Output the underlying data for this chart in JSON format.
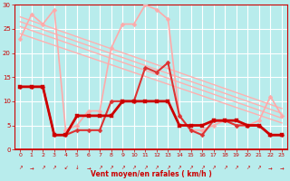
{
  "xlabel": "Vent moyen/en rafales ( km/h )",
  "xlim": [
    -0.5,
    23.5
  ],
  "ylim": [
    0,
    30
  ],
  "yticks": [
    0,
    5,
    10,
    15,
    20,
    25,
    30
  ],
  "xticks": [
    0,
    1,
    2,
    3,
    4,
    5,
    6,
    7,
    8,
    9,
    10,
    11,
    12,
    13,
    14,
    15,
    16,
    17,
    18,
    19,
    20,
    21,
    22,
    23
  ],
  "background_color": "#b8ecec",
  "grid_color": "#ffffff",
  "series": [
    {
      "x": [
        0,
        23
      ],
      "y": [
        27.5,
        8.5
      ],
      "color": "#ffb0b0",
      "linewidth": 1.0,
      "marker": null,
      "zorder": 2
    },
    {
      "x": [
        0,
        23
      ],
      "y": [
        26.5,
        7.5
      ],
      "color": "#ffb0b0",
      "linewidth": 1.0,
      "marker": null,
      "zorder": 2
    },
    {
      "x": [
        0,
        23
      ],
      "y": [
        25.5,
        6.5
      ],
      "color": "#ffb0b0",
      "linewidth": 1.0,
      "marker": null,
      "zorder": 2
    },
    {
      "x": [
        0,
        23
      ],
      "y": [
        24.0,
        5.5
      ],
      "color": "#ffb0b0",
      "linewidth": 1.0,
      "marker": null,
      "zorder": 2
    },
    {
      "x": [
        0,
        1,
        2,
        3,
        4,
        5,
        6,
        7,
        8,
        9,
        10,
        11,
        12,
        13,
        14,
        15,
        16,
        17,
        18,
        19,
        20,
        21,
        22,
        23
      ],
      "y": [
        23,
        28,
        26,
        29,
        4,
        5,
        8,
        8,
        21,
        26,
        26,
        30,
        29,
        27,
        7,
        4,
        4,
        5,
        6,
        5,
        5,
        6,
        11,
        7
      ],
      "color": "#ffaaaa",
      "linewidth": 1.2,
      "marker": "D",
      "markersize": 2.5,
      "zorder": 3
    },
    {
      "x": [
        0,
        1,
        2,
        3,
        4,
        5,
        6,
        7,
        8,
        9,
        10,
        11,
        12,
        13,
        14,
        15,
        16,
        17,
        18,
        19,
        20,
        21,
        22,
        23
      ],
      "y": [
        13,
        13,
        13,
        3,
        3,
        4,
        4,
        4,
        10,
        10,
        10,
        17,
        16,
        18,
        7,
        4,
        3,
        6,
        6,
        5,
        5,
        5,
        3,
        3
      ],
      "color": "#dd3333",
      "linewidth": 1.5,
      "marker": "D",
      "markersize": 2.5,
      "zorder": 4
    },
    {
      "x": [
        0,
        1,
        2,
        3,
        4,
        5,
        6,
        7,
        8,
        9,
        10,
        11,
        12,
        13,
        14,
        15,
        16,
        17,
        18,
        19,
        20,
        21,
        22,
        23
      ],
      "y": [
        13,
        13,
        13,
        3,
        3,
        7,
        7,
        7,
        7,
        10,
        10,
        10,
        10,
        10,
        5,
        5,
        5,
        6,
        6,
        6,
        5,
        5,
        3,
        3
      ],
      "color": "#cc0000",
      "linewidth": 2.0,
      "marker": "s",
      "markersize": 2.5,
      "zorder": 5
    }
  ],
  "arrow_symbols": [
    "↗",
    "→",
    "↗",
    "↗",
    "↙",
    "↓",
    "→",
    "↗",
    "↗",
    "↗",
    "↗",
    "↗",
    "↗",
    "↗",
    "↗",
    "↗",
    "↗",
    "↗",
    "↗",
    "↗",
    "↗",
    "↗",
    "→",
    "→"
  ]
}
